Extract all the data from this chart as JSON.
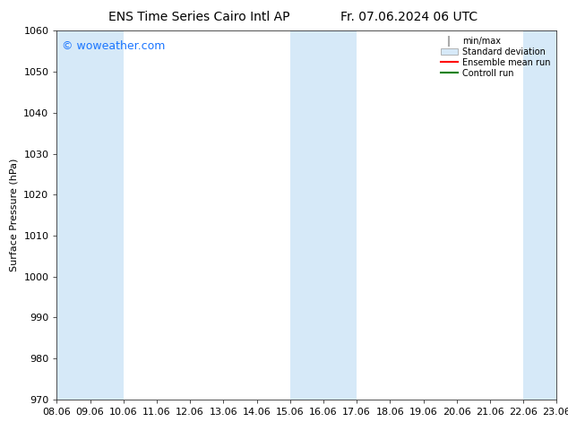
{
  "title_left": "ENS Time Series Cairo Intl AP",
  "title_right": "Fr. 07.06.2024 06 UTC",
  "ylabel": "Surface Pressure (hPa)",
  "ylim": [
    970,
    1060
  ],
  "yticks": [
    970,
    980,
    990,
    1000,
    1010,
    1020,
    1030,
    1040,
    1050,
    1060
  ],
  "x_labels": [
    "08.06",
    "09.06",
    "10.06",
    "11.06",
    "12.06",
    "13.06",
    "14.06",
    "15.06",
    "16.06",
    "17.06",
    "18.06",
    "19.06",
    "20.06",
    "21.06",
    "22.06",
    "23.06"
  ],
  "x_values": [
    0,
    1,
    2,
    3,
    4,
    5,
    6,
    7,
    8,
    9,
    10,
    11,
    12,
    13,
    14,
    15
  ],
  "shaded_bands": [
    {
      "xmin": 0,
      "xmax": 2,
      "color": "#d6e9f8"
    },
    {
      "xmin": 7,
      "xmax": 9,
      "color": "#d6e9f8"
    },
    {
      "xmin": 14,
      "xmax": 15,
      "color": "#d6e9f8"
    }
  ],
  "watermark_text": "© woweather.com",
  "watermark_color": "#1a75ff",
  "legend_entries": [
    {
      "label": "min/max",
      "color": "#aaaaaa",
      "type": "errorbar"
    },
    {
      "label": "Standard deviation",
      "color": "#d6e9f8",
      "type": "rect"
    },
    {
      "label": "Ensemble mean run",
      "color": "red",
      "type": "line"
    },
    {
      "label": "Controll run",
      "color": "green",
      "type": "line"
    }
  ],
  "background_color": "#ffffff",
  "title_fontsize": 10,
  "label_fontsize": 8,
  "tick_fontsize": 8,
  "watermark_fontsize": 9
}
